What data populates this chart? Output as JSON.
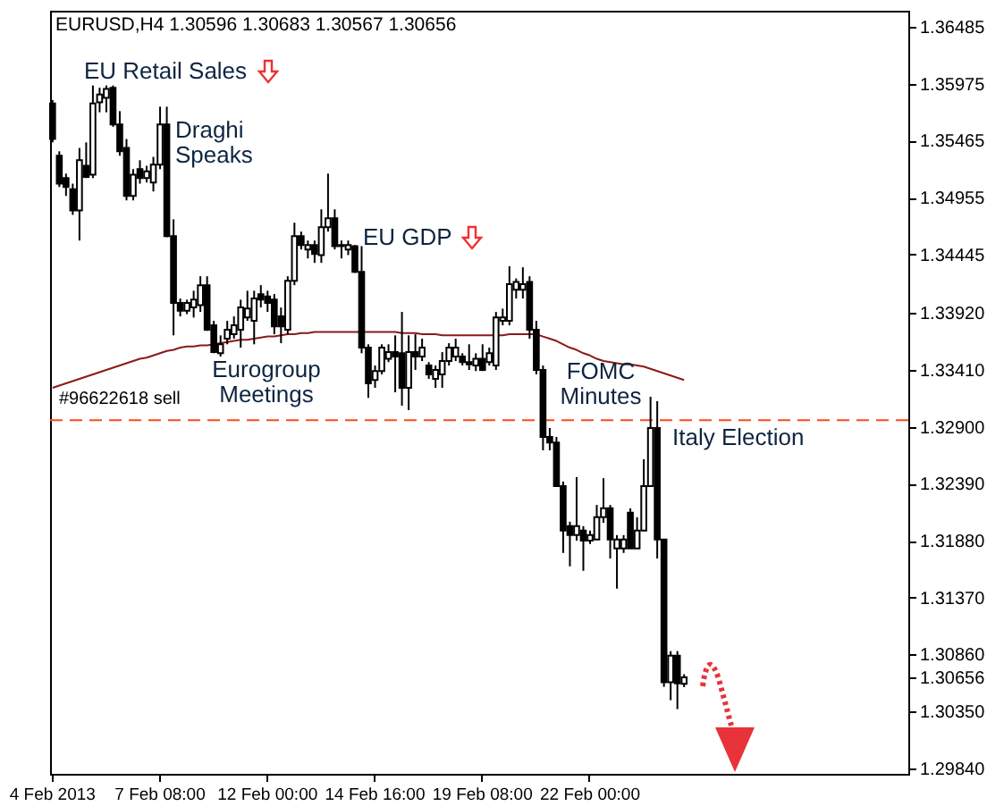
{
  "chart_data": {
    "type": "candlestick",
    "title": "EURUSD,H4  1.30596 1.30683 1.30567 1.30656",
    "color": "#000000",
    "categories": [
      "4 Feb 2013",
      null,
      null,
      null,
      null,
      null,
      null,
      null,
      null,
      null,
      null,
      null,
      null,
      null,
      null,
      null,
      "7 Feb 08:00",
      null,
      null,
      null,
      null,
      null,
      null,
      null,
      null,
      null,
      null,
      null,
      null,
      null,
      null,
      null,
      "12 Feb 00:00",
      null,
      null,
      null,
      null,
      null,
      null,
      null,
      null,
      null,
      null,
      null,
      null,
      null,
      null,
      null,
      "14 Feb 16:00",
      null,
      null,
      null,
      null,
      null,
      null,
      null,
      null,
      null,
      null,
      null,
      null,
      null,
      null,
      null,
      "19 Feb 08:00",
      null,
      null,
      null,
      null,
      null,
      null,
      null,
      null,
      null,
      null,
      null,
      null,
      null,
      null,
      null,
      "22 Feb 00:00",
      null,
      null,
      null,
      null,
      null,
      null,
      null,
      null,
      null,
      null,
      null,
      null,
      null,
      null,
      null,
      null,
      null,
      null,
      null,
      null,
      null,
      null,
      null,
      null,
      null,
      null,
      null,
      null,
      null,
      null,
      null,
      null,
      null,
      null,
      null,
      null,
      null,
      null,
      null,
      null,
      null,
      null,
      null,
      null,
      null,
      null,
      null
    ],
    "ohlc": [
      [
        1.358,
        1.3583,
        1.3545,
        1.3548
      ],
      [
        1.3533,
        1.3537,
        1.3505,
        1.3508
      ],
      [
        1.3513,
        1.3517,
        1.3497,
        1.3505
      ],
      [
        1.3503,
        1.3508,
        1.348,
        1.3484
      ],
      [
        1.3484,
        1.354,
        1.3457,
        1.3529
      ],
      [
        1.3524,
        1.3545,
        1.3513,
        1.3514
      ],
      [
        1.3516,
        1.3596,
        1.3513,
        1.358
      ],
      [
        1.3581,
        1.3594,
        1.3572,
        1.3588
      ],
      [
        1.3585,
        1.3596,
        1.3572,
        1.3593
      ],
      [
        1.3594,
        1.3596,
        1.3559,
        1.3561
      ],
      [
        1.3561,
        1.3573,
        1.3533,
        1.3537
      ],
      [
        1.354,
        1.3548,
        1.3493,
        1.3497
      ],
      [
        1.3497,
        1.3521,
        1.3493,
        1.3516
      ],
      [
        1.3521,
        1.3529,
        1.3508,
        1.3513
      ],
      [
        1.3513,
        1.3524,
        1.3509,
        1.3519
      ],
      [
        1.3509,
        1.3532,
        1.3501,
        1.3525
      ],
      [
        1.3525,
        1.3577,
        1.3521,
        1.3561
      ],
      [
        1.3561,
        1.3577,
        1.346,
        1.3461
      ],
      [
        1.3461,
        1.3476,
        1.3372,
        1.3401
      ],
      [
        1.3401,
        1.3405,
        1.3389,
        1.3394
      ],
      [
        1.3394,
        1.3404,
        1.3391,
        1.3401
      ],
      [
        1.3397,
        1.3412,
        1.3388,
        1.3404
      ],
      [
        1.3399,
        1.3425,
        1.3393,
        1.3417
      ],
      [
        1.3417,
        1.3425,
        1.3376,
        1.3377
      ],
      [
        1.3381,
        1.3385,
        1.3356,
        1.3357
      ],
      [
        1.3356,
        1.3372,
        1.3353,
        1.3364
      ],
      [
        1.3369,
        1.3385,
        1.3364,
        1.3377
      ],
      [
        1.3373,
        1.3389,
        1.3369,
        1.3381
      ],
      [
        1.3377,
        1.3404,
        1.3361,
        1.3397
      ],
      [
        1.3388,
        1.3412,
        1.3385,
        1.3396
      ],
      [
        1.3385,
        1.3412,
        1.3364,
        1.3405
      ],
      [
        1.3409,
        1.3417,
        1.3397,
        1.3404
      ],
      [
        1.3407,
        1.3412,
        1.3393,
        1.3401
      ],
      [
        1.3404,
        1.3409,
        1.3373,
        1.338
      ],
      [
        1.3389,
        1.3397,
        1.3365,
        1.338
      ],
      [
        1.3377,
        1.3425,
        1.3373,
        1.3421
      ],
      [
        1.3421,
        1.3473,
        1.3417,
        1.3461
      ],
      [
        1.3461,
        1.3465,
        1.3449,
        1.3453
      ],
      [
        1.3449,
        1.3457,
        1.3441,
        1.3453
      ],
      [
        1.3453,
        1.3457,
        1.3437,
        1.3445
      ],
      [
        1.3444,
        1.3485,
        1.3437,
        1.3469
      ],
      [
        1.3469,
        1.3517,
        1.3465,
        1.3477
      ],
      [
        1.3477,
        1.3485,
        1.3449,
        1.3452
      ],
      [
        1.3453,
        1.3457,
        1.3441,
        1.3452
      ],
      [
        1.3449,
        1.3457,
        1.3444,
        1.3453
      ],
      [
        1.3452,
        1.3453,
        1.3428,
        1.3429
      ],
      [
        1.3429,
        1.3452,
        1.3356,
        1.3361
      ],
      [
        1.3361,
        1.3364,
        1.3316,
        1.3329
      ],
      [
        1.3332,
        1.3345,
        1.3325,
        1.334
      ],
      [
        1.334,
        1.3364,
        1.3337,
        1.3361
      ],
      [
        1.3351,
        1.3364,
        1.3348,
        1.3357
      ],
      [
        1.3357,
        1.3372,
        1.3321,
        1.3353
      ],
      [
        1.3356,
        1.3393,
        1.3309,
        1.3325
      ],
      [
        1.3325,
        1.3372,
        1.3305,
        1.3357
      ],
      [
        1.3357,
        1.3373,
        1.3341,
        1.3353
      ],
      [
        1.3353,
        1.3369,
        1.3349,
        1.3361
      ],
      [
        1.3345,
        1.3348,
        1.3333,
        1.3337
      ],
      [
        1.3333,
        1.3345,
        1.3325,
        1.3341
      ],
      [
        1.3337,
        1.3357,
        1.3325,
        1.3349
      ],
      [
        1.3349,
        1.3365,
        1.3345,
        1.3361
      ],
      [
        1.3353,
        1.3369,
        1.3349,
        1.3361
      ],
      [
        1.3353,
        1.3356,
        1.3345,
        1.3348
      ],
      [
        1.3348,
        1.3364,
        1.3341,
        1.3346
      ],
      [
        1.3345,
        1.3356,
        1.334,
        1.3351
      ],
      [
        1.3351,
        1.3364,
        1.334,
        1.3341
      ],
      [
        1.3348,
        1.3361,
        1.3345,
        1.3356
      ],
      [
        1.3345,
        1.3393,
        1.3341,
        1.3388
      ],
      [
        1.3385,
        1.3396,
        1.3381,
        1.3388
      ],
      [
        1.3385,
        1.3434,
        1.3381,
        1.3418
      ],
      [
        1.3413,
        1.3423,
        1.3405,
        1.342
      ],
      [
        1.3413,
        1.3433,
        1.3405,
        1.3418
      ],
      [
        1.342,
        1.3425,
        1.3369,
        1.3377
      ],
      [
        1.3377,
        1.3385,
        1.3337,
        1.3341
      ],
      [
        1.3341,
        1.3345,
        1.3269,
        1.3281
      ],
      [
        1.3281,
        1.3289,
        1.3269,
        1.3276
      ],
      [
        1.3276,
        1.3281,
        1.3237,
        1.3237
      ],
      [
        1.3237,
        1.3241,
        1.3177,
        1.3197
      ],
      [
        1.3201,
        1.3205,
        1.3165,
        1.3193
      ],
      [
        1.3193,
        1.3245,
        1.3188,
        1.3201
      ],
      [
        1.3197,
        1.3201,
        1.3161,
        1.3188
      ],
      [
        1.3188,
        1.3197,
        1.3185,
        1.3193
      ],
      [
        1.3189,
        1.322,
        1.3189,
        1.3209
      ],
      [
        1.3209,
        1.3244,
        1.3204,
        1.3217
      ],
      [
        1.3217,
        1.322,
        1.3172,
        1.3189
      ],
      [
        1.3181,
        1.3193,
        1.3145,
        1.3189
      ],
      [
        1.3181,
        1.3193,
        1.3177,
        1.3189
      ],
      [
        1.3213,
        1.3217,
        1.3181,
        1.3181
      ],
      [
        1.3181,
        1.3209,
        1.3181,
        1.3197
      ],
      [
        1.3197,
        1.3261,
        1.3197,
        1.3237
      ],
      [
        1.3237,
        1.3317,
        1.3237,
        1.3289
      ],
      [
        1.3289,
        1.3313,
        1.3172,
        1.3189
      ],
      [
        1.3189,
        1.3189,
        1.3057,
        1.3061
      ],
      [
        1.3061,
        1.3089,
        1.3045,
        1.3085
      ],
      [
        1.3085,
        1.3089,
        1.3037,
        1.306
      ],
      [
        1.30596,
        1.30683,
        1.30567,
        1.30656
      ],
      null,
      null,
      null,
      null,
      null,
      null,
      null,
      null,
      null,
      null,
      null,
      null,
      null,
      null,
      null,
      null,
      null,
      null,
      null,
      null,
      null,
      null,
      null,
      null,
      null,
      null,
      null,
      null,
      null,
      null,
      null,
      null,
      null
    ],
    "series": [
      {
        "type": "line",
        "color": "#8b1a1a",
        "values": [
          1.3325,
          1.3327,
          1.3329,
          1.3331,
          1.3333,
          1.3335,
          1.3337,
          1.3339,
          1.3341,
          1.3343,
          1.3345,
          1.3347,
          1.3349,
          1.3351,
          1.3352,
          1.3354,
          1.3356,
          1.3358,
          1.3359,
          1.3361,
          1.3362,
          1.3362,
          1.3363,
          1.3363,
          1.3364,
          1.3365,
          1.3366,
          1.3367,
          1.3368,
          1.3368,
          1.3369,
          1.337,
          1.3371,
          1.3371,
          1.3372,
          1.3373,
          1.3373,
          1.3374,
          1.3374,
          1.3375,
          1.3375,
          1.3375,
          1.3375,
          1.3375,
          1.3375,
          1.3375,
          1.3375,
          1.3375,
          1.3375,
          1.3375,
          1.3375,
          1.3375,
          1.3374,
          1.3374,
          1.3374,
          1.3373,
          1.3373,
          1.3373,
          1.3372,
          1.3372,
          1.3372,
          1.3372,
          1.3372,
          1.3372,
          1.3372,
          1.3372,
          1.3372,
          1.3372,
          1.3373,
          1.3373,
          1.3373,
          1.3373,
          1.3373,
          1.3371,
          1.3369,
          1.3367,
          1.3364,
          1.3361,
          1.3359,
          1.3356,
          1.3354,
          1.3351,
          1.3349,
          1.3348,
          1.3347,
          1.3346,
          1.3346,
          1.3345,
          1.3344,
          1.3342,
          1.334,
          1.3338,
          1.3336,
          1.3334,
          1.3332,
          null,
          null,
          null,
          null,
          null,
          null,
          null,
          null,
          null,
          null,
          null,
          null,
          null,
          null,
          null,
          null,
          null,
          null,
          null,
          null,
          null,
          null,
          null,
          null,
          null,
          null,
          null,
          null,
          null,
          null,
          null,
          null,
          null
        ]
      }
    ],
    "ylim": [
      1.2979,
      1.3663
    ],
    "yticks": [
      1.36485,
      1.35975,
      1.35465,
      1.34955,
      1.34445,
      {
        "value": 1.3392,
        "label": "1.33920"
      },
      {
        "value": 1.3341,
        "label": "1.33410"
      },
      {
        "value": 1.329,
        "label": "1.32900"
      },
      {
        "value": 1.3239,
        "label": "1.32390"
      },
      {
        "value": 1.3188,
        "label": "1.31880"
      },
      {
        "value": 1.3137,
        "label": "1.31370"
      },
      {
        "value": 1.3086,
        "label": "1.30860"
      },
      1.30656,
      {
        "value": 1.3035,
        "label": "1.30350"
      },
      {
        "value": 1.2984,
        "label": "1.29840"
      }
    ],
    "ref_lines": [
      {
        "axis": "y",
        "value": 1.3296,
        "label": "#96622618 sell",
        "color": "#ff4a1c",
        "line_style": "dashed"
      }
    ],
    "annotations": [
      "EU Retail Sales",
      "Draghi Speaks",
      "EU GDP",
      "Eurogroup Meetings",
      "FOMC Minutes",
      "Italy Election"
    ]
  }
}
